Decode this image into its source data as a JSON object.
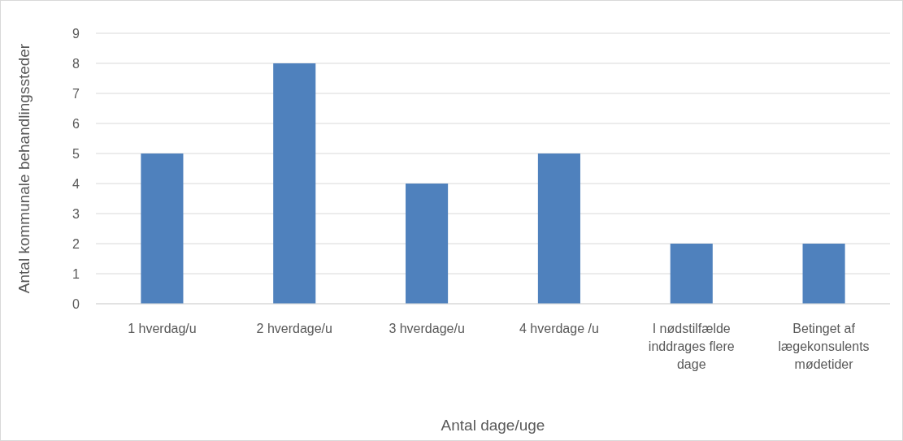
{
  "chart_data": {
    "type": "bar",
    "xlabel": "Antal dage/uge",
    "ylabel": "Antal kommunale behandlingssteder",
    "categories": [
      "1 hverdag/u",
      "2 hverdage/u",
      "3 hverdage/u",
      "4 hverdage /u",
      "I nødstilfælde inddrages flere dage",
      "Betinget af lægekonsulents mødetider"
    ],
    "values": [
      5,
      8,
      4,
      5,
      2,
      2
    ],
    "color": "#4f81bd",
    "ylim": [
      0,
      9
    ],
    "yticks": [
      0,
      1,
      2,
      3,
      4,
      5,
      6,
      7,
      8,
      9
    ],
    "grid": "y"
  }
}
